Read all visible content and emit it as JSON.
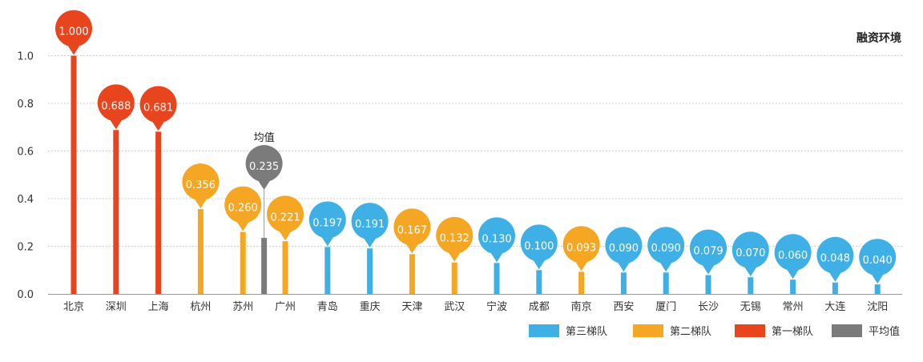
{
  "chart_data": {
    "type": "bar",
    "title": "融资环境",
    "ylim": [
      0,
      1.05
    ],
    "yticks": [
      "0.0",
      "0.2",
      "0.4",
      "0.6",
      "0.8",
      "1.0"
    ],
    "grid": true,
    "legend_position": "bottom-right",
    "categories": [
      "北京",
      "深圳",
      "上海",
      "杭州",
      "苏州",
      "广州",
      "青岛",
      "重庆",
      "天津",
      "武汉",
      "宁波",
      "成都",
      "南京",
      "西安",
      "厦门",
      "长沙",
      "无锡",
      "常州",
      "大连",
      "沈阳"
    ],
    "points": [
      {
        "category": "北京",
        "value": 1.0,
        "label": "1.000",
        "tier": "tier1"
      },
      {
        "category": "深圳",
        "value": 0.688,
        "label": "0.688",
        "tier": "tier1"
      },
      {
        "category": "上海",
        "value": 0.681,
        "label": "0.681",
        "tier": "tier1"
      },
      {
        "category": "杭州",
        "value": 0.356,
        "label": "0.356",
        "tier": "tier2"
      },
      {
        "category": "苏州",
        "value": 0.26,
        "label": "0.260",
        "tier": "tier2"
      },
      {
        "category": "广州",
        "value": 0.221,
        "label": "0.221",
        "tier": "tier2"
      },
      {
        "category": "青岛",
        "value": 0.197,
        "label": "0.197",
        "tier": "tier3"
      },
      {
        "category": "重庆",
        "value": 0.191,
        "label": "0.191",
        "tier": "tier3"
      },
      {
        "category": "天津",
        "value": 0.167,
        "label": "0.167",
        "tier": "tier2"
      },
      {
        "category": "武汉",
        "value": 0.132,
        "label": "0.132",
        "tier": "tier2"
      },
      {
        "category": "宁波",
        "value": 0.13,
        "label": "0.130",
        "tier": "tier3"
      },
      {
        "category": "成都",
        "value": 0.1,
        "label": "0.100",
        "tier": "tier3"
      },
      {
        "category": "南京",
        "value": 0.093,
        "label": "0.093",
        "tier": "tier2"
      },
      {
        "category": "西安",
        "value": 0.09,
        "label": "0.090",
        "tier": "tier3"
      },
      {
        "category": "厦门",
        "value": 0.09,
        "label": "0.090",
        "tier": "tier3"
      },
      {
        "category": "长沙",
        "value": 0.079,
        "label": "0.079",
        "tier": "tier3"
      },
      {
        "category": "无锡",
        "value": 0.07,
        "label": "0.070",
        "tier": "tier3"
      },
      {
        "category": "常州",
        "value": 0.06,
        "label": "0.060",
        "tier": "tier3"
      },
      {
        "category": "大连",
        "value": 0.048,
        "label": "0.048",
        "tier": "tier3"
      },
      {
        "category": "沈阳",
        "value": 0.04,
        "label": "0.040",
        "tier": "tier3"
      }
    ],
    "average": {
      "value": 0.235,
      "label": "0.235",
      "caption": "均值",
      "after_category": "苏州"
    },
    "series": [
      {
        "key": "tier3",
        "name": "第三梯队",
        "color": "#3fb0e6"
      },
      {
        "key": "tier2",
        "name": "第二梯队",
        "color": "#f5a623"
      },
      {
        "key": "tier1",
        "name": "第一梯队",
        "color": "#e8451e"
      },
      {
        "key": "avg",
        "name": "平均值",
        "color": "#7b7b7b"
      }
    ]
  }
}
